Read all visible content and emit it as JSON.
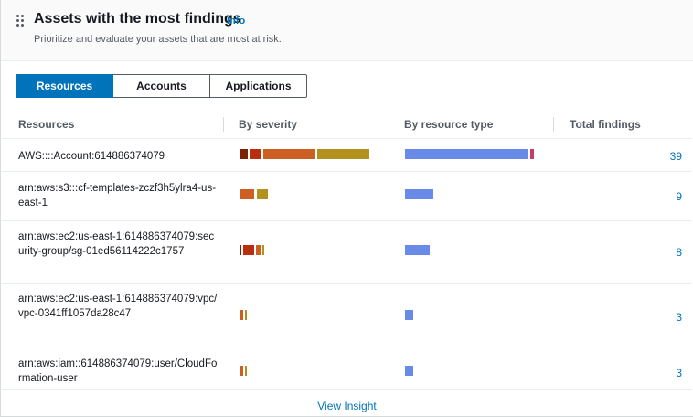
{
  "widget": {
    "title": "Assets with the most findings",
    "info_label": "Info",
    "subtitle": "Prioritize and evaluate your assets that are most at risk.",
    "tabs": [
      "Resources",
      "Accounts",
      "Applications"
    ],
    "selected_tab": "Resources",
    "columns": [
      "Resources",
      "By severity",
      "By resource type",
      "Total findings"
    ],
    "rows": [
      {
        "resource": "AWS::::Account:614886374079",
        "total": "39"
      },
      {
        "resource": "arn:aws:s3:::cf-templates-zczf3h5ylra4-us-east-1",
        "total": "9"
      },
      {
        "resource": "arn:aws:ec2:us-east-1:614886374079:security-group/sg-01ed56114222c1757",
        "total": "8"
      },
      {
        "resource": "arn:aws:ec2:us-east-1:614886374079:vpc/vpc-0341ff1057da28c47",
        "total": "3"
      },
      {
        "resource": "arn:aws:iam::614886374079:user/CloudFormation-user",
        "total": "3"
      }
    ],
    "footer_link": "View Insight"
  },
  "colors": {
    "accent": "#0073bb",
    "severity_critical": "#7d2105",
    "severity_high": "#ba2e0f",
    "severity_medium": "#cc5f21",
    "severity_low": "#b2911c",
    "resource_type_primary": "#688ae8",
    "resource_type_secondary": "#c33d69"
  }
}
